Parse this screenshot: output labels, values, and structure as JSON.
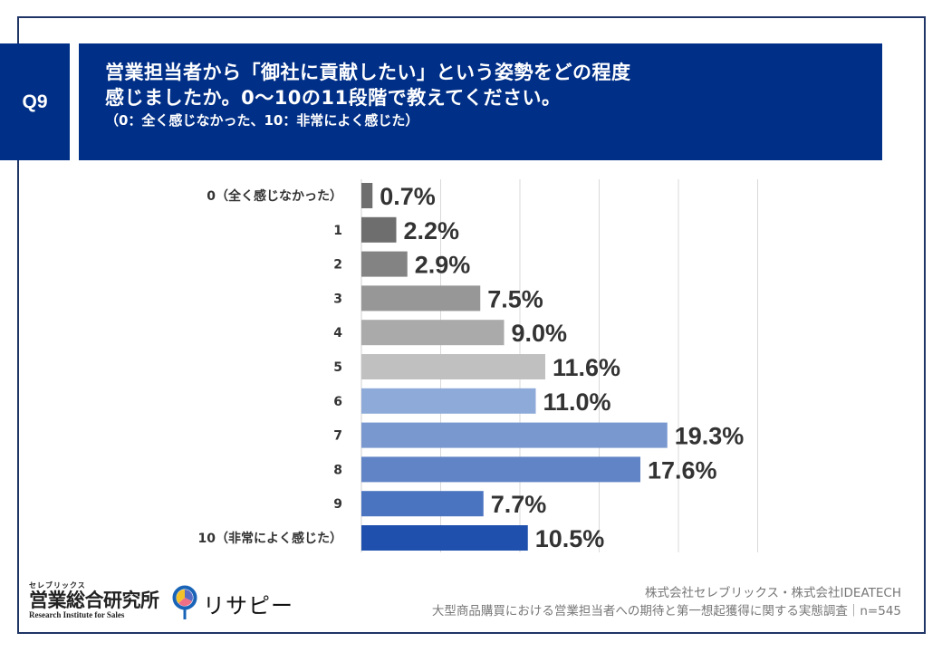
{
  "header": {
    "badge": "Q9",
    "title_line1": "営業担当者から「御社に貢献したい」という姿勢をどの程度",
    "title_line2": "感じましたか。0〜10の11段階で教えてください。",
    "subtitle": "（0：全く感じなかった、10：非常によく感じた）"
  },
  "chart_data": {
    "type": "bar",
    "orientation": "horizontal",
    "title": "営業担当者から「御社に貢献したい」という姿勢をどの程度感じましたか。0〜10の11段階で教えてください。",
    "categories": [
      "0（全く感じなかった）",
      "1",
      "2",
      "3",
      "4",
      "5",
      "6",
      "7",
      "8",
      "9",
      "10（非常によく感じた）"
    ],
    "values": [
      0.7,
      2.2,
      2.9,
      7.5,
      9.0,
      11.6,
      11.0,
      19.3,
      17.6,
      7.7,
      10.5
    ],
    "value_labels": [
      "0.7%",
      "2.2%",
      "2.9%",
      "7.5%",
      "9.0%",
      "11.6%",
      "11.0%",
      "19.3%",
      "17.6%",
      "7.7%",
      "10.5%"
    ],
    "colors": [
      "#6e6e6e",
      "#6e6e6e",
      "#838383",
      "#979797",
      "#aaaaaa",
      "#c0c0c0",
      "#8eaad9",
      "#7898cf",
      "#6184c6",
      "#4a74c0",
      "#1f50ad"
    ],
    "xlim": [
      0,
      25
    ],
    "gridlines_at": [
      0,
      5,
      10,
      15,
      20,
      25
    ],
    "grid": true,
    "xlabel": "",
    "ylabel": "",
    "unit": "%"
  },
  "footer": {
    "logo_kana": "セレブリックス",
    "logo_main": "営業総合研究所",
    "logo_sub": "Research Institute for Sales",
    "brand2": "リサピー",
    "credit_line1": "株式会社セレブリックス・株式会社IDEATECH",
    "credit_line2": "大型商品購買における営業担当者への期待と第一想起獲得に関する実態調査｜n=545"
  }
}
